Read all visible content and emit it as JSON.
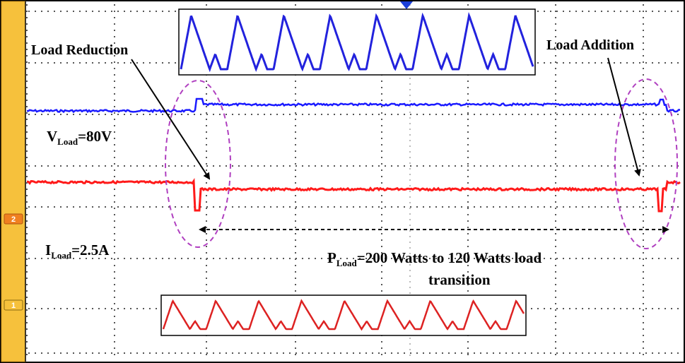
{
  "chart_data": {
    "type": "line",
    "title": "",
    "xlabel": "",
    "ylabel": "",
    "grid": true,
    "channel_markers": [
      "2",
      "1"
    ],
    "annotations": {
      "load_reduction": "Load Reduction",
      "load_addition": "Load Addition",
      "v_load_prefix": "V",
      "v_load_sub": "Load",
      "v_load_value": "=80V",
      "i_load_prefix": "I",
      "i_load_sub": "Load",
      "i_load_value": "=2.5A",
      "p_load_prefix": "P",
      "p_load_sub": "Load",
      "p_load_line1": "=200 Watts to 120 Watts load",
      "p_load_line2": "transition"
    },
    "series": [
      {
        "name": "V_Load",
        "color": "#1a1aff",
        "segments": [
          {
            "x_start": 0.0,
            "x_end": 0.26,
            "level": "before"
          },
          {
            "x_start": 0.26,
            "x_end": 0.98,
            "level": "after"
          },
          {
            "x_start": 0.98,
            "x_end": 1.0,
            "level": "before"
          }
        ]
      },
      {
        "name": "I_Load",
        "color": "#ff1a1a",
        "segments": [
          {
            "x_start": 0.0,
            "x_end": 0.26,
            "level": "before"
          },
          {
            "x_start": 0.26,
            "x_end": 0.98,
            "level": "after"
          },
          {
            "x_start": 0.98,
            "x_end": 1.0,
            "level": "before"
          }
        ]
      }
    ],
    "colors": {
      "voltage": "#1a1aff",
      "current": "#ff1a1a",
      "sidebar": "#f6c13c",
      "ellipse": "#b040c0",
      "marker": "#f08020"
    }
  }
}
